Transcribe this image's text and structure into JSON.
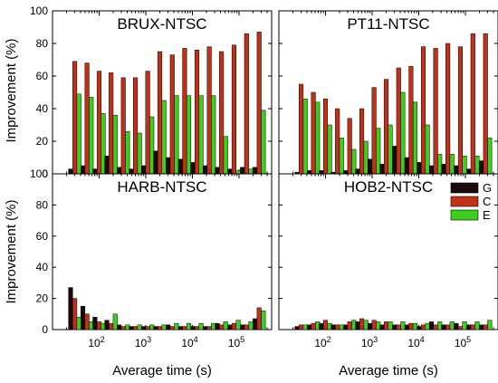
{
  "figure": {
    "ylabel": "Improvement (%)",
    "xlabel": "Average time (s)"
  },
  "legend": {
    "items": [
      {
        "label": "G",
        "color": "#1a0a0a"
      },
      {
        "label": "C",
        "color": "#c0311a"
      },
      {
        "label": "E",
        "color": "#3ecf1e"
      }
    ],
    "placement": "right-of-HOB2-panel"
  },
  "chart_data": [
    {
      "type": "bar",
      "title": "BRUX-NTSC",
      "xlabel": "Average time (s)",
      "ylabel": "Improvement (%)",
      "xscale": "log",
      "xlim": [
        10,
        500000
      ],
      "ylim": [
        0,
        100
      ],
      "yticks": [
        0,
        20,
        40,
        60,
        80,
        100
      ],
      "xticks": [
        {
          "value": 100,
          "base": "10",
          "exp": "2"
        },
        {
          "value": 1000,
          "base": "10",
          "exp": "3"
        },
        {
          "value": 10000,
          "base": "10",
          "exp": "4"
        },
        {
          "value": 100000,
          "base": "10",
          "exp": "5"
        }
      ],
      "x": [
        30,
        55,
        100,
        180,
        330,
        600,
        1100,
        2000,
        3700,
        6800,
        12500,
        23000,
        42000,
        78000,
        145000,
        270000
      ],
      "series": [
        {
          "name": "G",
          "color": "#1a0a0a",
          "values": [
            3,
            5,
            3,
            11,
            4,
            3,
            5,
            14,
            10,
            9,
            7,
            5,
            4,
            3,
            4,
            4
          ]
        },
        {
          "name": "C",
          "color": "#c0311a",
          "values": [
            69,
            68,
            63,
            62,
            59,
            59,
            63,
            75,
            73,
            77,
            76,
            78,
            75,
            79,
            86,
            87
          ]
        },
        {
          "name": "E",
          "color": "#3ecf1e",
          "values": [
            49,
            47,
            37,
            36,
            26,
            25,
            35,
            45,
            48,
            48,
            48,
            48,
            23,
            2,
            3,
            39
          ]
        }
      ]
    },
    {
      "type": "bar",
      "title": "PT11-NTSC",
      "xlabel": "Average time (s)",
      "ylabel": "",
      "xscale": "log",
      "xlim": [
        10,
        500000
      ],
      "ylim": [
        0,
        100
      ],
      "yticks": [
        0,
        20,
        40,
        60,
        80,
        100
      ],
      "xticks": [
        {
          "value": 100,
          "base": "10",
          "exp": "2"
        },
        {
          "value": 1000,
          "base": "10",
          "exp": "3"
        },
        {
          "value": 10000,
          "base": "10",
          "exp": "4"
        },
        {
          "value": 100000,
          "base": "10",
          "exp": "5"
        }
      ],
      "x": [
        30,
        55,
        100,
        180,
        330,
        600,
        1100,
        2000,
        3700,
        6800,
        12500,
        23000,
        42000,
        78000,
        145000,
        270000
      ],
      "series": [
        {
          "name": "G",
          "color": "#1a0a0a",
          "values": [
            1,
            2,
            2,
            1,
            2,
            3,
            9,
            6,
            17,
            10,
            7,
            5,
            6,
            5,
            3,
            8
          ]
        },
        {
          "name": "C",
          "color": "#c0311a",
          "values": [
            55,
            50,
            46,
            40,
            34,
            40,
            53,
            58,
            65,
            66,
            78,
            77,
            80,
            78,
            86,
            86
          ]
        },
        {
          "name": "E",
          "color": "#3ecf1e",
          "values": [
            46,
            44,
            30,
            22,
            15,
            20,
            28,
            30,
            50,
            44,
            30,
            12,
            12,
            11,
            11,
            22
          ]
        }
      ]
    },
    {
      "type": "bar",
      "title": "HARB-NTSC",
      "xlabel": "Average time (s)",
      "ylabel": "Improvement (%)",
      "xscale": "log",
      "xlim": [
        10,
        500000
      ],
      "ylim": [
        0,
        100
      ],
      "yticks": [
        0,
        20,
        40,
        60,
        80,
        100
      ],
      "xticks": [
        {
          "value": 100,
          "base": "10",
          "exp": "2"
        },
        {
          "value": 1000,
          "base": "10",
          "exp": "3"
        },
        {
          "value": 10000,
          "base": "10",
          "exp": "4"
        },
        {
          "value": 100000,
          "base": "10",
          "exp": "5"
        }
      ],
      "x": [
        30,
        55,
        100,
        180,
        330,
        600,
        1100,
        2000,
        3700,
        6800,
        12500,
        23000,
        42000,
        78000,
        145000,
        270000
      ],
      "series": [
        {
          "name": "G",
          "color": "#1a0a0a",
          "values": [
            27,
            15,
            8,
            6,
            3,
            2,
            2,
            2,
            3,
            2,
            2,
            2,
            4,
            3,
            3,
            7
          ]
        },
        {
          "name": "C",
          "color": "#c0311a",
          "values": [
            20,
            10,
            5,
            4,
            2,
            2,
            2,
            2,
            2,
            2,
            2,
            2,
            3,
            4,
            3,
            14
          ]
        },
        {
          "name": "E",
          "color": "#3ecf1e",
          "values": [
            8,
            5,
            4,
            10,
            3,
            3,
            3,
            3,
            4,
            4,
            4,
            4,
            5,
            6,
            5,
            12
          ]
        }
      ]
    },
    {
      "type": "bar",
      "title": "HOB2-NTSC",
      "xlabel": "Average time (s)",
      "ylabel": "",
      "xscale": "log",
      "xlim": [
        10,
        500000
      ],
      "ylim": [
        0,
        100
      ],
      "yticks": [
        0,
        20,
        40,
        60,
        80,
        100
      ],
      "xticks": [
        {
          "value": 100,
          "base": "10",
          "exp": "2"
        },
        {
          "value": 1000,
          "base": "10",
          "exp": "3"
        },
        {
          "value": 10000,
          "base": "10",
          "exp": "4"
        },
        {
          "value": 100000,
          "base": "10",
          "exp": "5"
        }
      ],
      "x": [
        30,
        55,
        100,
        180,
        330,
        600,
        1100,
        2000,
        3700,
        6800,
        12500,
        23000,
        42000,
        78000,
        145000,
        270000
      ],
      "series": [
        {
          "name": "G",
          "color": "#1a0a0a",
          "values": [
            2,
            3,
            4,
            3,
            3,
            5,
            4,
            3,
            3,
            3,
            2,
            5,
            3,
            4,
            3,
            3
          ]
        },
        {
          "name": "C",
          "color": "#c0311a",
          "values": [
            3,
            4,
            6,
            3,
            5,
            7,
            6,
            5,
            3,
            4,
            3,
            3,
            3,
            2,
            3,
            3
          ]
        },
        {
          "name": "E",
          "color": "#3ecf1e",
          "values": [
            3,
            5,
            4,
            3,
            6,
            6,
            5,
            5,
            5,
            4,
            4,
            5,
            5,
            5,
            5,
            6
          ]
        }
      ]
    }
  ]
}
